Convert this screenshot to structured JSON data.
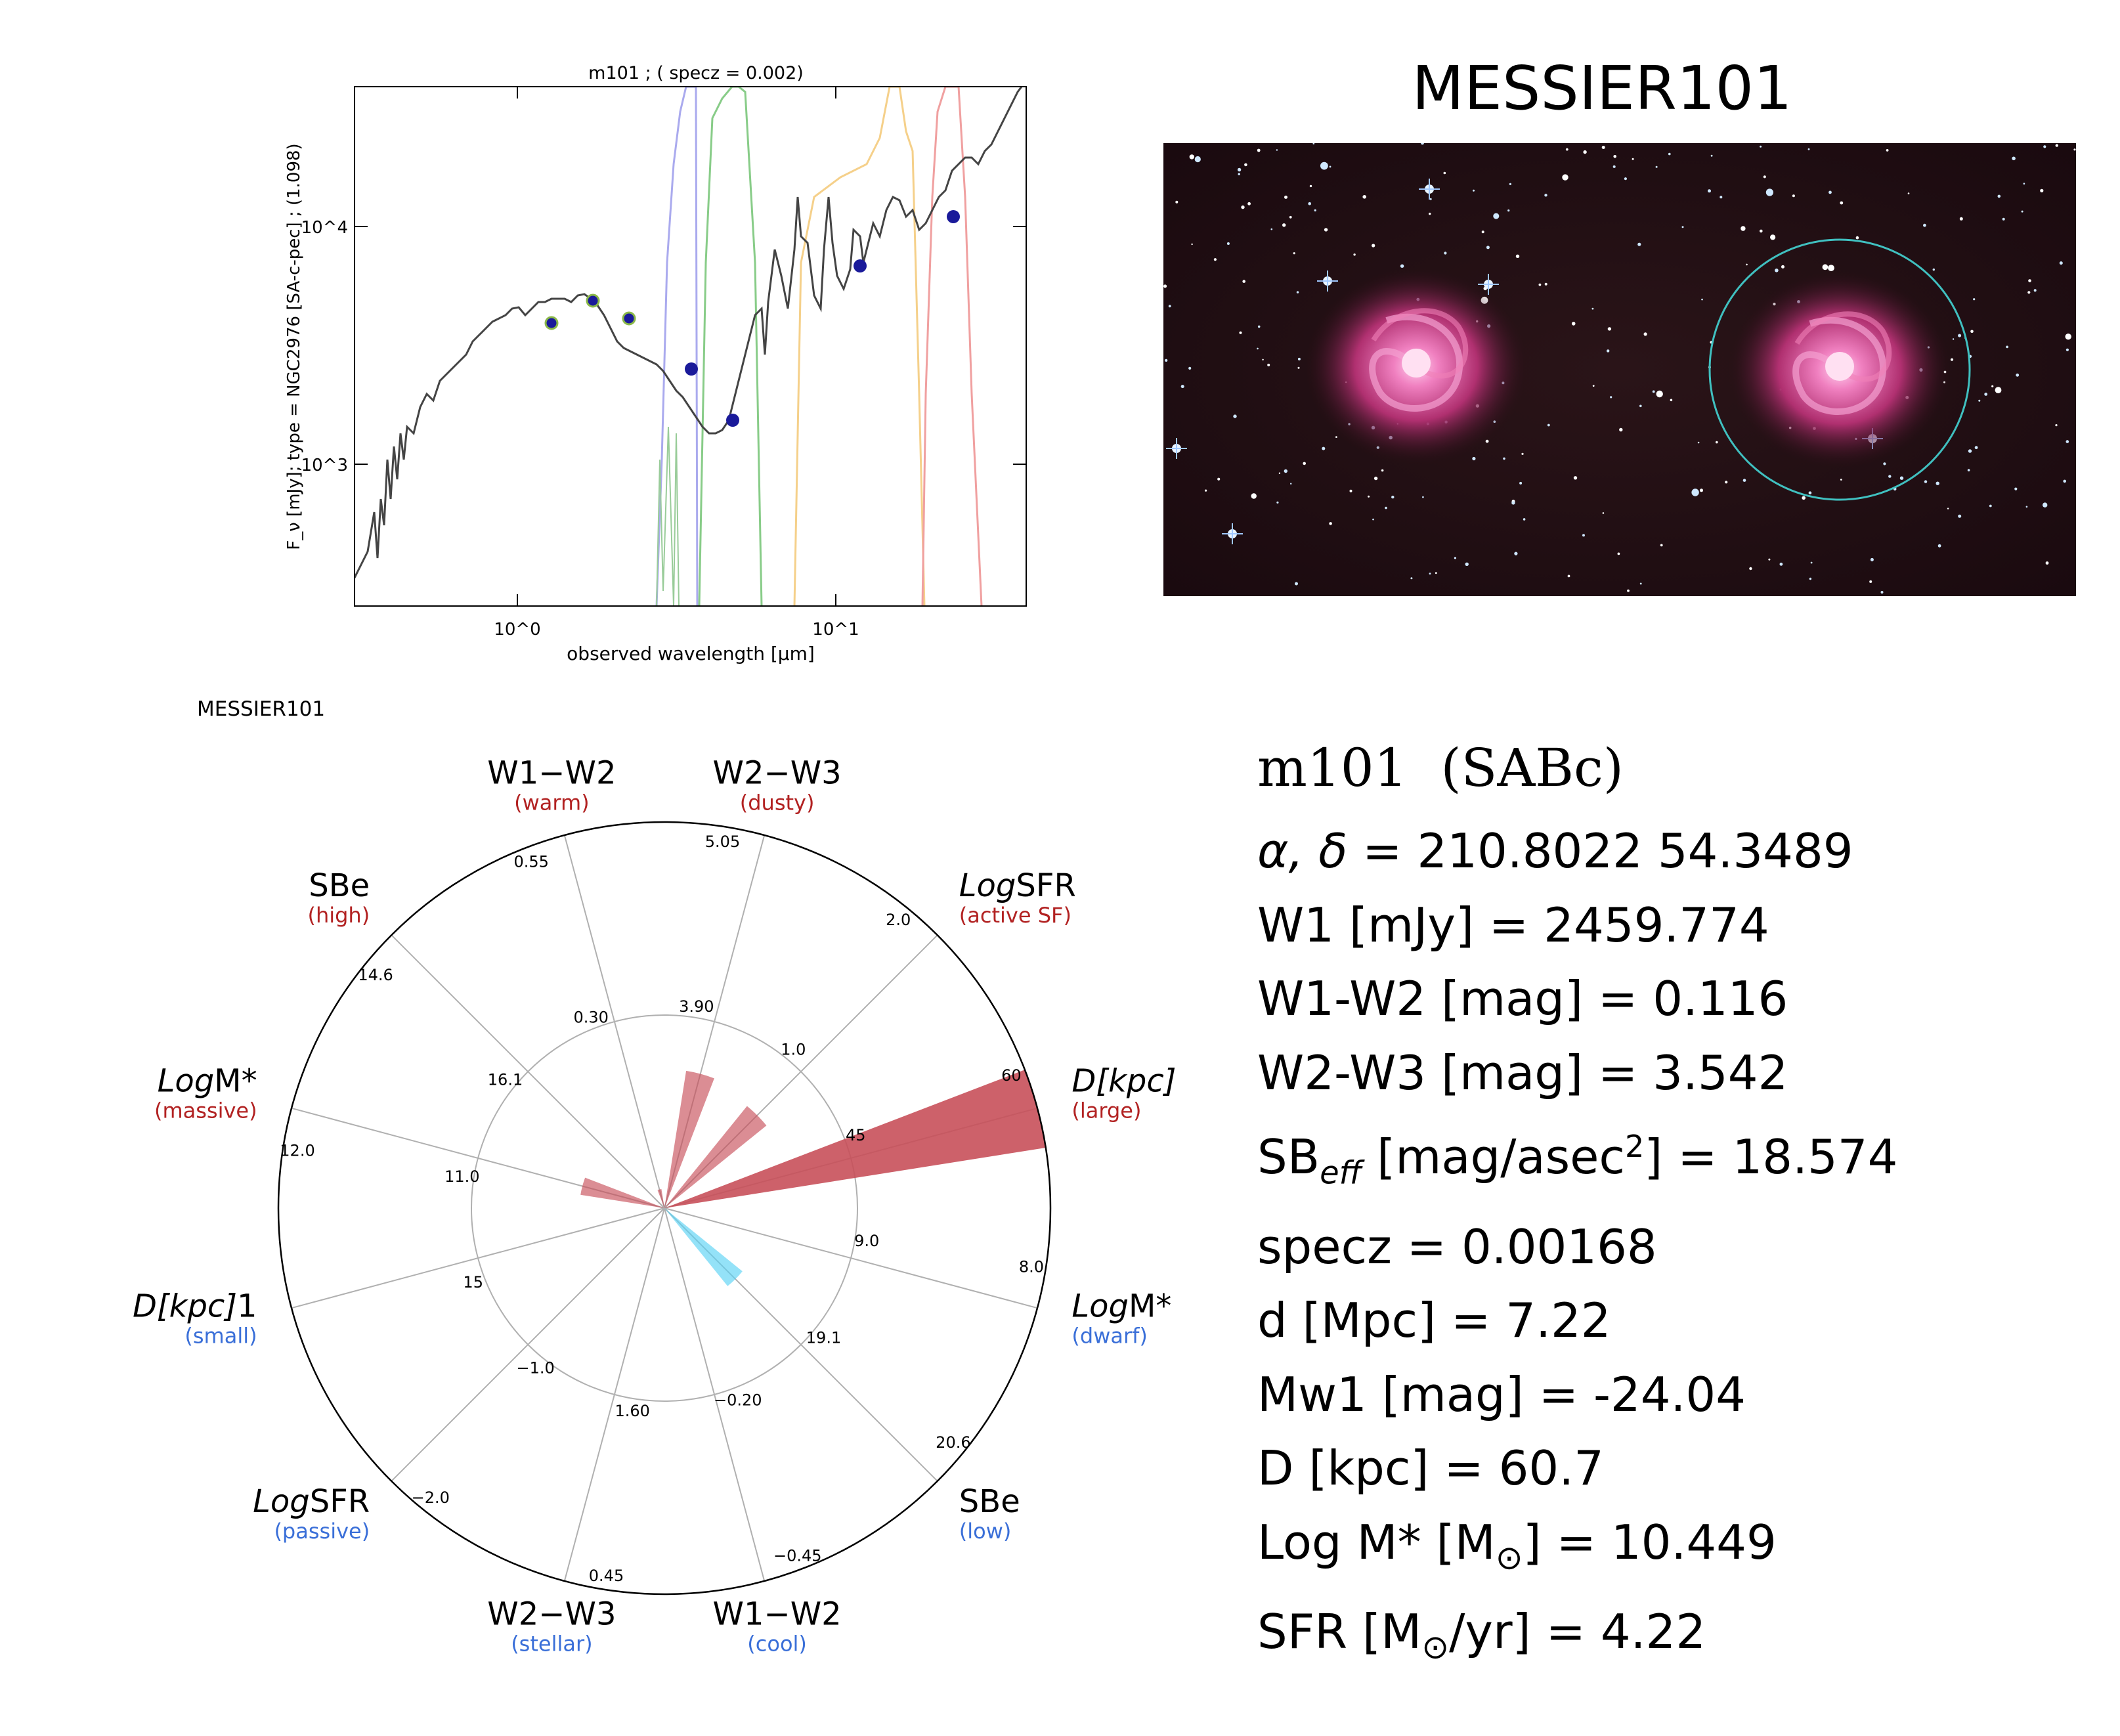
{
  "sed_plot": {
    "title": "m101 ; ( specz = 0.002)",
    "xlabel": "observed wavelength [μm]",
    "ylabel": "F_ν [mJy];  type = NGC2976 [SA-c-pec] ; (1.098)",
    "x_ticks": [
      "10^0",
      "10^1"
    ],
    "y_ticks": [
      "10^3",
      "10^4"
    ]
  },
  "image_panel": {
    "title": "MESSIER101"
  },
  "radar_plot": {
    "corner_label": "MESSIER101",
    "colors": {
      "high": "#c8505a",
      "low": "#5ad2f5",
      "outer_label_high": "#b22222",
      "outer_label_low": "#3a6fd8"
    },
    "axes": [
      {
        "name": "W1−W2",
        "qual": "(warm)",
        "side": "high",
        "inner_tick": "0.30",
        "outer_tick": "0.55"
      },
      {
        "name": "W2−W3",
        "qual": "(dusty)",
        "side": "high",
        "inner_tick": "3.90",
        "outer_tick": "5.05"
      },
      {
        "name_italic": "Log",
        "name": "SFR",
        "qual": "(active SF)",
        "side": "high",
        "inner_tick": "1.0",
        "outer_tick": "2.0"
      },
      {
        "name_italic": "D[kpc]",
        "name": "",
        "qual": "(large)",
        "side": "high",
        "inner_tick": "45",
        "outer_tick": "60"
      },
      {
        "name_italic": "Log",
        "name": "M*",
        "qual": "(dwarf)",
        "side": "low",
        "inner_tick": "9.0",
        "outer_tick": "8.0"
      },
      {
        "name": "SBe",
        "qual": "(low)",
        "side": "low",
        "inner_tick": "19.1",
        "outer_tick": "20.6"
      },
      {
        "name": "W1−W2",
        "qual": "(cool)",
        "side": "low",
        "inner_tick": "−0.20",
        "outer_tick": "−0.45"
      },
      {
        "name": "W2−W3",
        "qual": "(stellar)",
        "side": "low",
        "inner_tick": "1.60",
        "outer_tick": "0.45"
      },
      {
        "name_italic": "Log",
        "name": "SFR",
        "qual": "(passive)",
        "side": "low",
        "inner_tick": "−1.0",
        "outer_tick": "−2.0"
      },
      {
        "name_italic": "D[kpc]",
        "name": "1",
        "qual": "(small)",
        "side": "low",
        "inner_tick": "15",
        "outer_tick": ""
      },
      {
        "name_italic": "Log",
        "name": "M*",
        "qual": "(massive)",
        "side": "high",
        "inner_tick": "11.0",
        "outer_tick": "12.0"
      },
      {
        "name": "SBe",
        "qual": "(high)",
        "side": "high",
        "inner_tick": "16.1",
        "outer_tick": "14.6"
      }
    ]
  },
  "chart_data": {
    "type": "radar",
    "categories": [
      "W1−W2 (warm)",
      "W2−W3 (dusty)",
      "LogSFR (active SF)",
      "D[kpc] (large)",
      "LogM* (dwarf)",
      "SBe (low)",
      "W1−W2 (cool)",
      "W2−W3 (stellar)",
      "LogSFR (passive)",
      "D[kpc] (small)",
      "LogM* (massive)",
      "SBe (high)"
    ],
    "radius_fraction": [
      0.05,
      0.36,
      0.34,
      1.0,
      0.0,
      0.26,
      0.0,
      0.0,
      0.0,
      0.0,
      0.22,
      0.0
    ],
    "range_inner": 0.5,
    "range_outer": 1.0
  },
  "info": {
    "name": "m101",
    "type": "(SABc)",
    "coords_label": "α, δ",
    "coords_value": " = 210.8022 54.3489",
    "w1": "W1 [mJy] = 2459.774",
    "w1w2": "W1-W2 [mag] = 0.116",
    "w2w3": "W2-W3 [mag] = 3.542",
    "sb_prefix": "SB",
    "sb_sub": "eff",
    "sb_mid": " [mag/asec",
    "sb_sup": "2",
    "sb_value": "] = 18.574",
    "specz": "specz = 0.00168",
    "dist": "d [Mpc] = 7.22",
    "mw1": "Mw1 [mag] = -24.04",
    "diam": "D [kpc] = 60.7",
    "logm_prefix": "Log M* [M",
    "logm_suffix": "] = 10.449",
    "sfr_prefix": "SFR [M",
    "sfr_suffix": "/yr] = 4.22",
    "sun_symbol": "⊙"
  }
}
